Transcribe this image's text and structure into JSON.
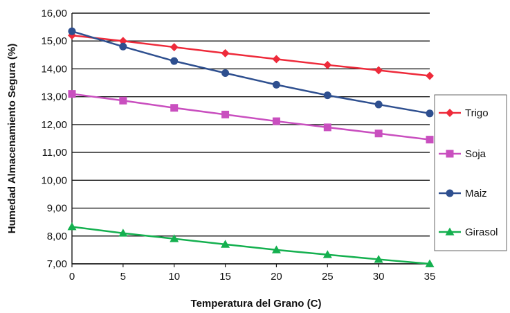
{
  "chart_data": {
    "type": "line",
    "title": "",
    "xlabel": "Temperatura del Grano (C)",
    "ylabel": "Humedad Almacenamiento Segura (%)",
    "x": [
      0,
      5,
      10,
      15,
      20,
      25,
      30,
      35
    ],
    "x_tick_labels": [
      "0",
      "5",
      "10",
      "15",
      "20",
      "25",
      "30",
      "35"
    ],
    "xlim": [
      0,
      35
    ],
    "ylim": [
      7,
      16
    ],
    "y_tick_labels": [
      "7,00",
      "8,00",
      "9,00",
      "10,00",
      "11,00",
      "12,00",
      "13,00",
      "14,00",
      "15,00",
      "16,00"
    ],
    "y_ticks": [
      7,
      8,
      9,
      10,
      11,
      12,
      13,
      14,
      15,
      16
    ],
    "grid": "horizontal",
    "legend_position": "right",
    "series": [
      {
        "name": "Trigo",
        "color": "#ee2a3a",
        "marker": "diamond",
        "values": [
          15.2,
          15.0,
          14.78,
          14.56,
          14.35,
          14.14,
          13.95,
          13.75
        ]
      },
      {
        "name": "Soja",
        "color": "#c94fbf",
        "marker": "square",
        "values": [
          13.1,
          12.86,
          12.6,
          12.36,
          12.12,
          11.9,
          11.68,
          11.46
        ]
      },
      {
        "name": "Maiz",
        "color": "#2e4f8f",
        "marker": "circle",
        "values": [
          15.35,
          14.8,
          14.28,
          13.85,
          13.43,
          13.05,
          12.72,
          12.4
        ]
      },
      {
        "name": "Girasol",
        "color": "#14b04f",
        "marker": "triangle",
        "values": [
          8.33,
          8.1,
          7.9,
          7.7,
          7.5,
          7.33,
          7.16,
          7.0
        ]
      }
    ]
  }
}
